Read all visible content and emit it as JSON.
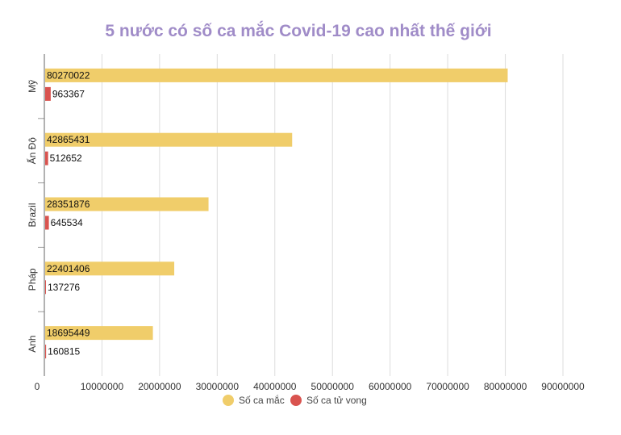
{
  "chart_data": {
    "type": "bar",
    "orientation": "horizontal",
    "title": "5 nước có số ca mắc Covid-19 cao nhất thế giới",
    "categories": [
      "Mỹ",
      "Ấn Độ",
      "Brazil",
      "Pháp",
      "Anh"
    ],
    "series": [
      {
        "name": "Số ca mắc",
        "color": "#f0cd6a",
        "values": [
          80270022,
          42865431,
          28351876,
          22401406,
          18695449
        ]
      },
      {
        "name": "Số ca tử vong",
        "color": "#d9534f",
        "values": [
          963367,
          512652,
          645534,
          137276,
          160815
        ]
      }
    ],
    "xlim": [
      0,
      90000000
    ],
    "x_ticks": [
      0,
      10000000,
      20000000,
      30000000,
      40000000,
      50000000,
      60000000,
      70000000,
      80000000,
      90000000
    ],
    "grid": true,
    "legend_position": "bottom",
    "title_color": "#a08cc8"
  }
}
